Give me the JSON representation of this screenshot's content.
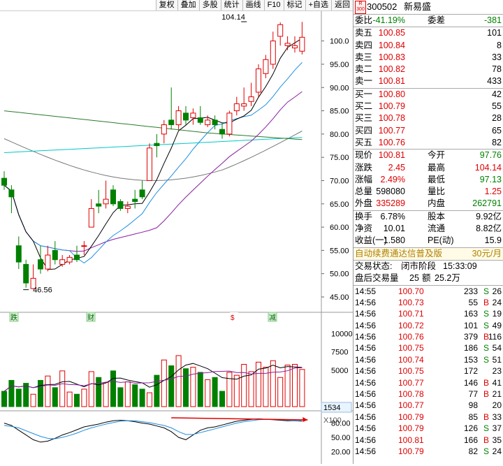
{
  "toolbar": [
    "复权",
    "叠加",
    "多股",
    "统计",
    "画线",
    "F10",
    "标记",
    "+自选",
    "返回"
  ],
  "stock": {
    "code": "300502",
    "name": "新易盛",
    "badge_top": "R",
    "badge_bottom": "300"
  },
  "weibi": {
    "label": "委比",
    "value": "-41.19%",
    "label2": "委差",
    "value2": "-381"
  },
  "sell": [
    {
      "label": "卖五",
      "price": "100.85",
      "vol": "101"
    },
    {
      "label": "卖四",
      "price": "100.84",
      "vol": "8"
    },
    {
      "label": "卖三",
      "price": "100.83",
      "vol": "33"
    },
    {
      "label": "卖二",
      "price": "100.82",
      "vol": "78"
    },
    {
      "label": "卖一",
      "price": "100.81",
      "vol": "433"
    }
  ],
  "buy": [
    {
      "label": "买一",
      "price": "100.80",
      "vol": "42"
    },
    {
      "label": "买二",
      "price": "100.79",
      "vol": "55"
    },
    {
      "label": "买三",
      "price": "100.78",
      "vol": "28"
    },
    {
      "label": "买四",
      "price": "100.77",
      "vol": "65"
    },
    {
      "label": "买五",
      "price": "100.76",
      "vol": "82"
    }
  ],
  "quote": [
    {
      "l1": "现价",
      "v1": "100.81",
      "l2": "今开",
      "v2": "97.76",
      "c1": "red",
      "c2": "green"
    },
    {
      "l1": "涨跌",
      "v1": "2.45",
      "l2": "最高",
      "v2": "104.14",
      "c1": "red",
      "c2": "red"
    },
    {
      "l1": "涨幅",
      "v1": "2.49%",
      "l2": "最低",
      "v2": "97.13",
      "c1": "red",
      "c2": "green"
    },
    {
      "l1": "总量",
      "v1": "598080",
      "l2": "量比",
      "v2": "1.25",
      "c1": "black",
      "c2": "red"
    },
    {
      "l1": "外盘",
      "v1": "335289",
      "l2": "内盘",
      "v2": "262791",
      "c1": "red",
      "c2": "green"
    }
  ],
  "fundamentals": [
    {
      "l1": "换手",
      "v1": "6.78%",
      "l2": "股本",
      "v2": "9.92亿"
    },
    {
      "l1": "净资",
      "v1": "10.01",
      "l2": "流通",
      "v2": "8.82亿"
    },
    {
      "l1": "收益(一)",
      "v1": "1.580",
      "l2": "PE(动)",
      "v2": "15.9"
    }
  ],
  "ad": {
    "text": "自动续费通达信普及版",
    "price": "30元/月"
  },
  "trade_status": {
    "label": "交易状态:",
    "value": "闭市阶段",
    "time": "15:33:09"
  },
  "after_hours": {
    "label": "盘后交易量",
    "vol": "25",
    "amt_label": "额",
    "amt": "25.2万"
  },
  "ticks": [
    {
      "time": "14:55",
      "price": "100.70",
      "vol": "233",
      "side": "S",
      "n": "26"
    },
    {
      "time": "14:56",
      "price": "100.73",
      "vol": "55",
      "side": "B",
      "n": "24"
    },
    {
      "time": "14:56",
      "price": "100.71",
      "vol": "163",
      "side": "S",
      "n": "19"
    },
    {
      "time": "14:56",
      "price": "100.72",
      "vol": "101",
      "side": "S",
      "n": "49"
    },
    {
      "time": "14:56",
      "price": "100.76",
      "vol": "379",
      "side": "B",
      "n": "116"
    },
    {
      "time": "14:56",
      "price": "100.75",
      "vol": "186",
      "side": "S",
      "n": "54"
    },
    {
      "time": "14:56",
      "price": "100.74",
      "vol": "153",
      "side": "S",
      "n": "51"
    },
    {
      "time": "14:56",
      "price": "100.75",
      "vol": "172",
      "side": "",
      "n": "23"
    },
    {
      "time": "14:56",
      "price": "100.77",
      "vol": "146",
      "side": "B",
      "n": "41"
    },
    {
      "time": "14:56",
      "price": "100.78",
      "vol": "77",
      "side": "B",
      "n": "21"
    },
    {
      "time": "14:56",
      "price": "100.77",
      "vol": "98",
      "side": "",
      "n": "20"
    },
    {
      "time": "14:56",
      "price": "100.79",
      "vol": "85",
      "side": "B",
      "n": "33"
    },
    {
      "time": "14:56",
      "price": "100.79",
      "vol": "126",
      "side": "S",
      "n": "37"
    },
    {
      "time": "14:56",
      "price": "100.81",
      "vol": "166",
      "side": "B",
      "n": "35"
    },
    {
      "time": "14:56",
      "price": "100.79",
      "vol": "82",
      "side": "S",
      "n": "24"
    }
  ],
  "colors": {
    "up": "#e00000",
    "down": "#008000",
    "ma5": "#000000",
    "ma10": "#1f8fe0",
    "ma20": "#8a1ea0",
    "ma60": "#2c7a2c",
    "ma120": "#00c8c8",
    "ma250": "#777777"
  },
  "chart_data": {
    "type": "candlestick",
    "price_ticks": [
      "100.0",
      "95.00",
      "90.00",
      "85.00",
      "80.00",
      "75.00",
      "70.00",
      "65.00",
      "60.00",
      "55.00",
      "50.00",
      "45.00"
    ],
    "volume_ticks": [
      "10000",
      "7500",
      "5000"
    ],
    "volume_readout": "1534",
    "volume_unit": "X100",
    "indicator_ticks": [
      "80.00",
      "50.00",
      "20.00"
    ],
    "annotations": [
      {
        "text": "104.14",
        "x_index": 33,
        "price": 104.14
      },
      {
        "text": "46.56",
        "x_index": 3,
        "price": 46.56
      }
    ],
    "event_markers": [
      "跌",
      "财",
      "$",
      "减"
    ],
    "candles": [
      {
        "o": 70.5,
        "h": 72.0,
        "l": 68.0,
        "c": 69.0
      },
      {
        "o": 68.0,
        "h": 69.0,
        "l": 63.0,
        "c": 66.5
      },
      {
        "o": 56.0,
        "h": 58.0,
        "l": 51.0,
        "c": 52.5
      },
      {
        "o": 52.0,
        "h": 53.0,
        "l": 47.0,
        "c": 48.0
      },
      {
        "o": 46.8,
        "h": 52.0,
        "l": 46.6,
        "c": 49.0
      },
      {
        "o": 53.0,
        "h": 56.0,
        "l": 50.0,
        "c": 51.0
      },
      {
        "o": 51.0,
        "h": 56.0,
        "l": 50.5,
        "c": 54.0
      },
      {
        "o": 55.0,
        "h": 57.0,
        "l": 52.0,
        "c": 53.0
      },
      {
        "o": 52.0,
        "h": 54.0,
        "l": 51.5,
        "c": 53.0
      },
      {
        "o": 52.5,
        "h": 54.0,
        "l": 52.0,
        "c": 53.5
      },
      {
        "o": 54.0,
        "h": 56.0,
        "l": 52.5,
        "c": 53.0
      },
      {
        "o": 56.0,
        "h": 57.0,
        "l": 54.0,
        "c": 56.0
      },
      {
        "o": 60.0,
        "h": 66.0,
        "l": 60.0,
        "c": 64.0
      },
      {
        "o": 65.0,
        "h": 68.0,
        "l": 63.0,
        "c": 64.5
      },
      {
        "o": 65.0,
        "h": 70.0,
        "l": 64.0,
        "c": 66.0
      },
      {
        "o": 68.0,
        "h": 69.0,
        "l": 64.5,
        "c": 65.0
      },
      {
        "o": 65.5,
        "h": 66.0,
        "l": 63.5,
        "c": 64.0
      },
      {
        "o": 64.0,
        "h": 65.5,
        "l": 63.0,
        "c": 64.5
      },
      {
        "o": 66.0,
        "h": 68.0,
        "l": 64.0,
        "c": 65.5
      },
      {
        "o": 68.0,
        "h": 70.0,
        "l": 66.0,
        "c": 66.5
      },
      {
        "o": 70.0,
        "h": 78.0,
        "l": 70.0,
        "c": 77.0
      },
      {
        "o": 78.0,
        "h": 80.0,
        "l": 75.0,
        "c": 77.5
      },
      {
        "o": 80.0,
        "h": 83.0,
        "l": 78.0,
        "c": 82.0
      },
      {
        "o": 83.0,
        "h": 90.0,
        "l": 81.0,
        "c": 82.0
      },
      {
        "o": 82.0,
        "h": 86.0,
        "l": 81.0,
        "c": 85.0
      },
      {
        "o": 84.5,
        "h": 86.0,
        "l": 82.0,
        "c": 83.0
      },
      {
        "o": 83.5,
        "h": 85.5,
        "l": 82.0,
        "c": 84.5
      },
      {
        "o": 83.5,
        "h": 86.0,
        "l": 82.0,
        "c": 82.5
      },
      {
        "o": 82.0,
        "h": 84.0,
        "l": 81.5,
        "c": 83.0
      },
      {
        "o": 83.0,
        "h": 84.0,
        "l": 81.0,
        "c": 82.0
      },
      {
        "o": 81.0,
        "h": 82.5,
        "l": 79.0,
        "c": 80.0
      },
      {
        "o": 80.0,
        "h": 85.0,
        "l": 79.5,
        "c": 84.5
      },
      {
        "o": 85.0,
        "h": 88.0,
        "l": 84.0,
        "c": 86.5
      },
      {
        "o": 86.0,
        "h": 90.0,
        "l": 85.0,
        "c": 86.5
      },
      {
        "o": 87.0,
        "h": 91.0,
        "l": 86.0,
        "c": 88.0
      },
      {
        "o": 89.0,
        "h": 95.0,
        "l": 88.0,
        "c": 94.0
      },
      {
        "o": 93.0,
        "h": 97.0,
        "l": 92.0,
        "c": 96.0
      },
      {
        "o": 95.0,
        "h": 102.0,
        "l": 94.0,
        "c": 100.0
      },
      {
        "o": 101.0,
        "h": 104.0,
        "l": 99.0,
        "c": 103.5
      },
      {
        "o": 99.0,
        "h": 101.0,
        "l": 98.0,
        "c": 99.5
      },
      {
        "o": 98.5,
        "h": 101.0,
        "l": 97.5,
        "c": 99.0
      },
      {
        "o": 97.8,
        "h": 104.1,
        "l": 97.1,
        "c": 100.8
      }
    ],
    "volumes": [
      2100,
      3600,
      2400,
      3200,
      1700,
      3600,
      4200,
      2600,
      4900,
      2000,
      1700,
      2400,
      4800,
      4000,
      3300,
      4900,
      2600,
      3400,
      3000,
      2400,
      1900,
      4300,
      6400,
      5600,
      7000,
      5200,
      5400,
      4700,
      3700,
      4000,
      2100,
      4700,
      4300,
      5800,
      4800,
      6100,
      5400,
      6300,
      4000,
      5700,
      5800,
      5100
    ],
    "indicator": {
      "k": [
        80,
        75,
        65,
        55,
        45,
        40,
        42,
        48,
        55,
        60,
        66,
        72,
        75,
        78,
        82,
        85,
        86,
        85,
        83,
        80,
        78,
        74,
        70,
        62,
        50,
        45,
        55,
        65,
        70,
        72,
        76,
        80,
        84,
        86,
        88,
        89,
        88,
        87,
        86,
        85,
        85,
        84
      ],
      "d": [
        75,
        73,
        70,
        64,
        58,
        52,
        48,
        47,
        50,
        54,
        59,
        65,
        70,
        74,
        78,
        81,
        84,
        85,
        85,
        83,
        81,
        78,
        75,
        70,
        62,
        56,
        56,
        60,
        64,
        68,
        72,
        76,
        80,
        83,
        85,
        87,
        88,
        88,
        87,
        86,
        85,
        85
      ]
    },
    "indicator_arrow_from_index": 24
  }
}
